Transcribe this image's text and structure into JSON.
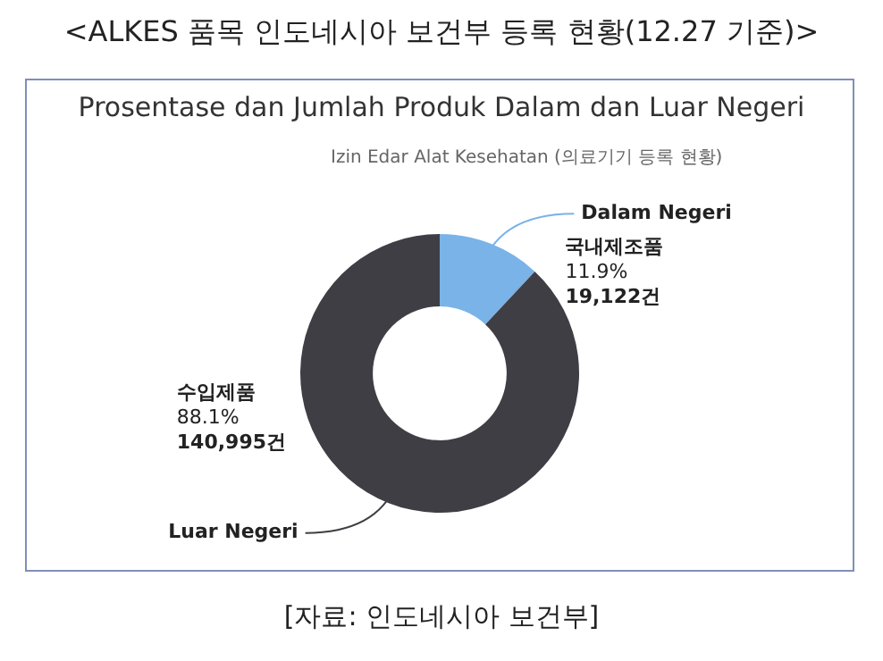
{
  "chart_data": {
    "type": "donut",
    "title": "<ALKES 품목 인도네시아 보건부 등록 현황(12.27 기준)>",
    "subtitle": "Prosentase dan Jumlah Produk Dalam dan Luar Negeri",
    "categories": [
      "Dalam Negeri",
      "Luar Negeri"
    ],
    "values": [
      19122,
      140995
    ],
    "colors": [
      "#7ab3e8",
      "#3f3e44"
    ],
    "value_labels": [
      "국내제조품\n11.9%\n19,122건",
      "수입제품\n88.1%\n140,995건"
    ],
    "legend": false,
    "annotations": [
      "Izin Edar Alat Kesehatan (의료기기 등록 현황)",
      "[자료: 인도네시아 보건부]"
    ]
  }
}
